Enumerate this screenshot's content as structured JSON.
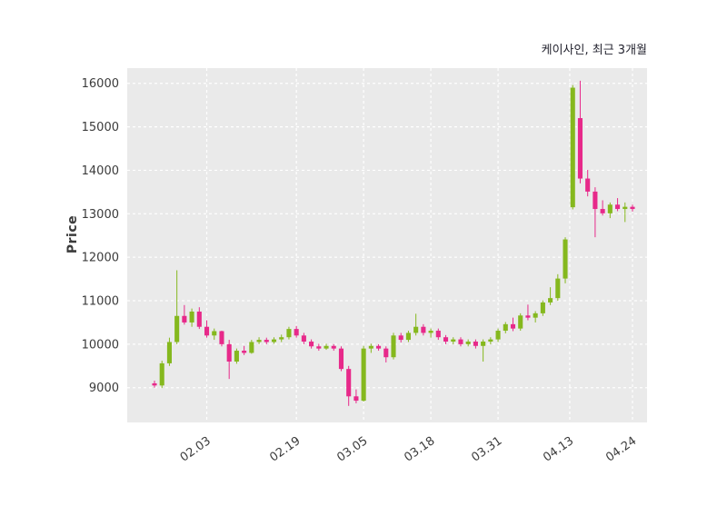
{
  "chart_data": {
    "type": "candlestick",
    "title": "케이사인, 최근 3개월",
    "series_name": "케이사인",
    "period_label": "최근 3개월",
    "ylabel": "Price",
    "xlabel": "",
    "ylim": [
      8200,
      16350
    ],
    "grid": true,
    "legend": "none",
    "plot_bg": "#eaeaea",
    "grid_color": "#ffffff",
    "up_color": "#85b81e",
    "down_color": "#e7298a",
    "tick_text_color": "#3b3b3b",
    "y_ticks": [
      9000,
      10000,
      11000,
      12000,
      13000,
      14000,
      15000,
      16000
    ],
    "x_ticks": [
      {
        "index": 7,
        "label": "02.03"
      },
      {
        "index": 19,
        "label": "02.19"
      },
      {
        "index": 28,
        "label": "03.05"
      },
      {
        "index": 37,
        "label": "03.18"
      },
      {
        "index": 46,
        "label": "03.31"
      },
      {
        "index": 55.6,
        "label": "04.13"
      },
      {
        "index": 64,
        "label": "04.24"
      }
    ],
    "candles_format": [
      "date",
      "open",
      "high",
      "low",
      "close"
    ],
    "candles": [
      [
        "01.20",
        9100,
        9160,
        9000,
        9050
      ],
      [
        "01.21",
        9050,
        9620,
        8990,
        9560
      ],
      [
        "01.22",
        9560,
        10150,
        9500,
        10050
      ],
      [
        "01.23",
        10050,
        11700,
        10000,
        10650
      ],
      [
        "01.24",
        10650,
        10900,
        10450,
        10500
      ],
      [
        "01.27",
        10500,
        10820,
        10400,
        10750
      ],
      [
        "01.31",
        10750,
        10850,
        10350,
        10400
      ],
      [
        "02.03",
        10400,
        10550,
        10150,
        10200
      ],
      [
        "02.04",
        10200,
        10360,
        10100,
        10300
      ],
      [
        "02.05",
        10300,
        10310,
        9950,
        10000
      ],
      [
        "02.06",
        10000,
        10100,
        9200,
        9600
      ],
      [
        "02.07",
        9600,
        9900,
        9550,
        9850
      ],
      [
        "02.10",
        9850,
        9960,
        9750,
        9800
      ],
      [
        "02.11",
        9800,
        10100,
        9780,
        10050
      ],
      [
        "02.12",
        10050,
        10160,
        10000,
        10100
      ],
      [
        "02.13",
        10100,
        10150,
        10000,
        10050
      ],
      [
        "02.14",
        10050,
        10160,
        10010,
        10110
      ],
      [
        "02.17",
        10110,
        10220,
        10050,
        10160
      ],
      [
        "02.18",
        10160,
        10400,
        10110,
        10350
      ],
      [
        "02.19",
        10350,
        10420,
        10150,
        10200
      ],
      [
        "02.20",
        10200,
        10260,
        10000,
        10060
      ],
      [
        "02.21",
        10060,
        10110,
        9900,
        9950
      ],
      [
        "02.24",
        9950,
        10010,
        9850,
        9900
      ],
      [
        "02.25",
        9900,
        10010,
        9870,
        9960
      ],
      [
        "02.26",
        9960,
        10000,
        9850,
        9900
      ],
      [
        "02.27",
        9900,
        9950,
        9380,
        9430
      ],
      [
        "02.28",
        9430,
        9500,
        8580,
        8800
      ],
      [
        "03.04",
        8800,
        8960,
        8640,
        8700
      ],
      [
        "03.05",
        8700,
        9960,
        8680,
        9900
      ],
      [
        "03.06",
        9900,
        10010,
        9800,
        9960
      ],
      [
        "03.07",
        9960,
        10000,
        9850,
        9900
      ],
      [
        "03.10",
        9900,
        9950,
        9580,
        9700
      ],
      [
        "03.11",
        9700,
        10260,
        9650,
        10200
      ],
      [
        "03.12",
        10200,
        10260,
        10040,
        10100
      ],
      [
        "03.13",
        10100,
        10310,
        10050,
        10260
      ],
      [
        "03.14",
        10260,
        10700,
        10200,
        10400
      ],
      [
        "03.17",
        10400,
        10460,
        10200,
        10260
      ],
      [
        "03.18",
        10260,
        10360,
        10150,
        10310
      ],
      [
        "03.19",
        10310,
        10360,
        10100,
        10160
      ],
      [
        "03.20",
        10160,
        10210,
        10000,
        10060
      ],
      [
        "03.21",
        10060,
        10160,
        10000,
        10110
      ],
      [
        "03.24",
        10110,
        10160,
        9950,
        10000
      ],
      [
        "03.25",
        10000,
        10110,
        9950,
        10060
      ],
      [
        "03.26",
        10060,
        10110,
        9900,
        9960
      ],
      [
        "03.27",
        9960,
        10110,
        9600,
        10060
      ],
      [
        "03.28",
        10060,
        10160,
        10000,
        10110
      ],
      [
        "03.31",
        10110,
        10360,
        10050,
        10310
      ],
      [
        "04.01",
        10310,
        10510,
        10250,
        10460
      ],
      [
        "04.02",
        10460,
        10610,
        10300,
        10360
      ],
      [
        "04.03",
        10360,
        10710,
        10310,
        10660
      ],
      [
        "04.04",
        10660,
        10910,
        10550,
        10610
      ],
      [
        "04.07",
        10610,
        10760,
        10500,
        10710
      ],
      [
        "04.08",
        10710,
        11010,
        10650,
        10960
      ],
      [
        "04.09",
        10960,
        11310,
        10900,
        11060
      ],
      [
        "04.10",
        11060,
        11610,
        11000,
        11510
      ],
      [
        "04.11",
        11510,
        12460,
        11400,
        12410
      ],
      [
        "04.14",
        13150,
        15960,
        13100,
        15900
      ],
      [
        "04.15",
        15200,
        16060,
        13700,
        13810
      ],
      [
        "04.16",
        13810,
        14010,
        13400,
        13510
      ],
      [
        "04.17",
        13510,
        13610,
        12460,
        13110
      ],
      [
        "04.18",
        13110,
        13310,
        12960,
        13010
      ],
      [
        "04.21",
        13010,
        13260,
        12900,
        13210
      ],
      [
        "04.22",
        13210,
        13360,
        13060,
        13110
      ],
      [
        "04.23",
        13110,
        13260,
        12810,
        13160
      ],
      [
        "04.24",
        13160,
        13210,
        13050,
        13110
      ]
    ]
  }
}
